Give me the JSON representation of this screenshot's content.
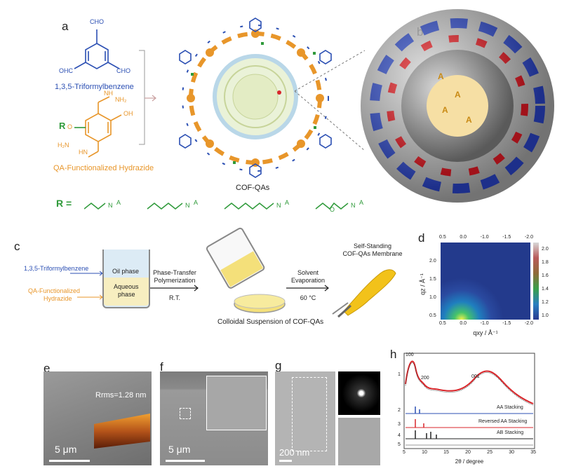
{
  "panel_a": {
    "label": "a",
    "cho_top": "CHO",
    "cho_left": "OHC",
    "cho_right": "CHO",
    "trialdehyde_name": "1,3,5-Triformylbenzene",
    "nh2": "NH₂",
    "nh": "NH",
    "oh": "OH",
    "r_group": "R",
    "o_atom": "O",
    "h2n": "H₂N",
    "hn": "HN",
    "hydrazide_name": "QA-Functionalized Hydrazide",
    "product_name": "COF-QAs",
    "r_equals": "R ="
  },
  "panel_b": {
    "label": "b",
    "anion": "A"
  },
  "panel_c": {
    "label": "c",
    "reagent_1": "1,3,5-Triformylbenzene",
    "reagent_2_line1": "QA-Functionalized",
    "reagent_2_line2": "Hydrazide",
    "oil_phase": "Oil phase",
    "aqueous_line1": "Aqueous",
    "aqueous_line2": "phase",
    "step1_line1": "Phase-Transfer",
    "step1_line2": "Polymerization",
    "step1_cond": "R.T.",
    "step2_line1": "Solvent",
    "step2_line2": "Evaporation",
    "step2_cond": "60 °C",
    "membrane_line1": "Self-Standing",
    "membrane_line2": "COF-QAs Membrane",
    "colloid_caption": "Colloidal Suspension of COF-QAs"
  },
  "panel_d": {
    "label": "d",
    "top_ticks": [
      "0.5",
      "0.0",
      "-1.0",
      "-1.5",
      "-2.0"
    ],
    "bottom_ticks": [
      "0.5",
      "0.0",
      "-1.0",
      "-1.5",
      "-2.0"
    ],
    "left_ticks": [
      "0.5",
      "1.0",
      "1.5",
      "2.0"
    ],
    "colorbar_ticks": [
      "2.0",
      "1.8",
      "1.6",
      "1.4",
      "1.2",
      "1.0"
    ],
    "ylabel": "qz / Å⁻¹",
    "xlabel": "qxy / Å⁻¹"
  },
  "panel_e": {
    "label": "e",
    "rms": "Rrms=1.28 nm",
    "scale": "5 μm"
  },
  "panel_f": {
    "label": "f",
    "scale": "5 μm"
  },
  "panel_g": {
    "label": "g",
    "scale": "200 nm"
  },
  "panel_h": {
    "label": "h",
    "peak_100": "100",
    "peak_200": "200",
    "peak_001": "001",
    "trace_numbers": [
      "1",
      "2",
      "3",
      "4",
      "5"
    ],
    "aa_label": "AA Stacking",
    "raa_label": "Reversed AA Stacking",
    "ab_label": "AB Stacking",
    "xticks": [
      "5",
      "10",
      "15",
      "20",
      "25",
      "30",
      "35"
    ],
    "xlabel": "2θ / degree"
  },
  "colors": {
    "blue": "#2b4fb3",
    "orange": "#e8962a",
    "green": "#2f9a3a",
    "red": "#d9262b"
  }
}
